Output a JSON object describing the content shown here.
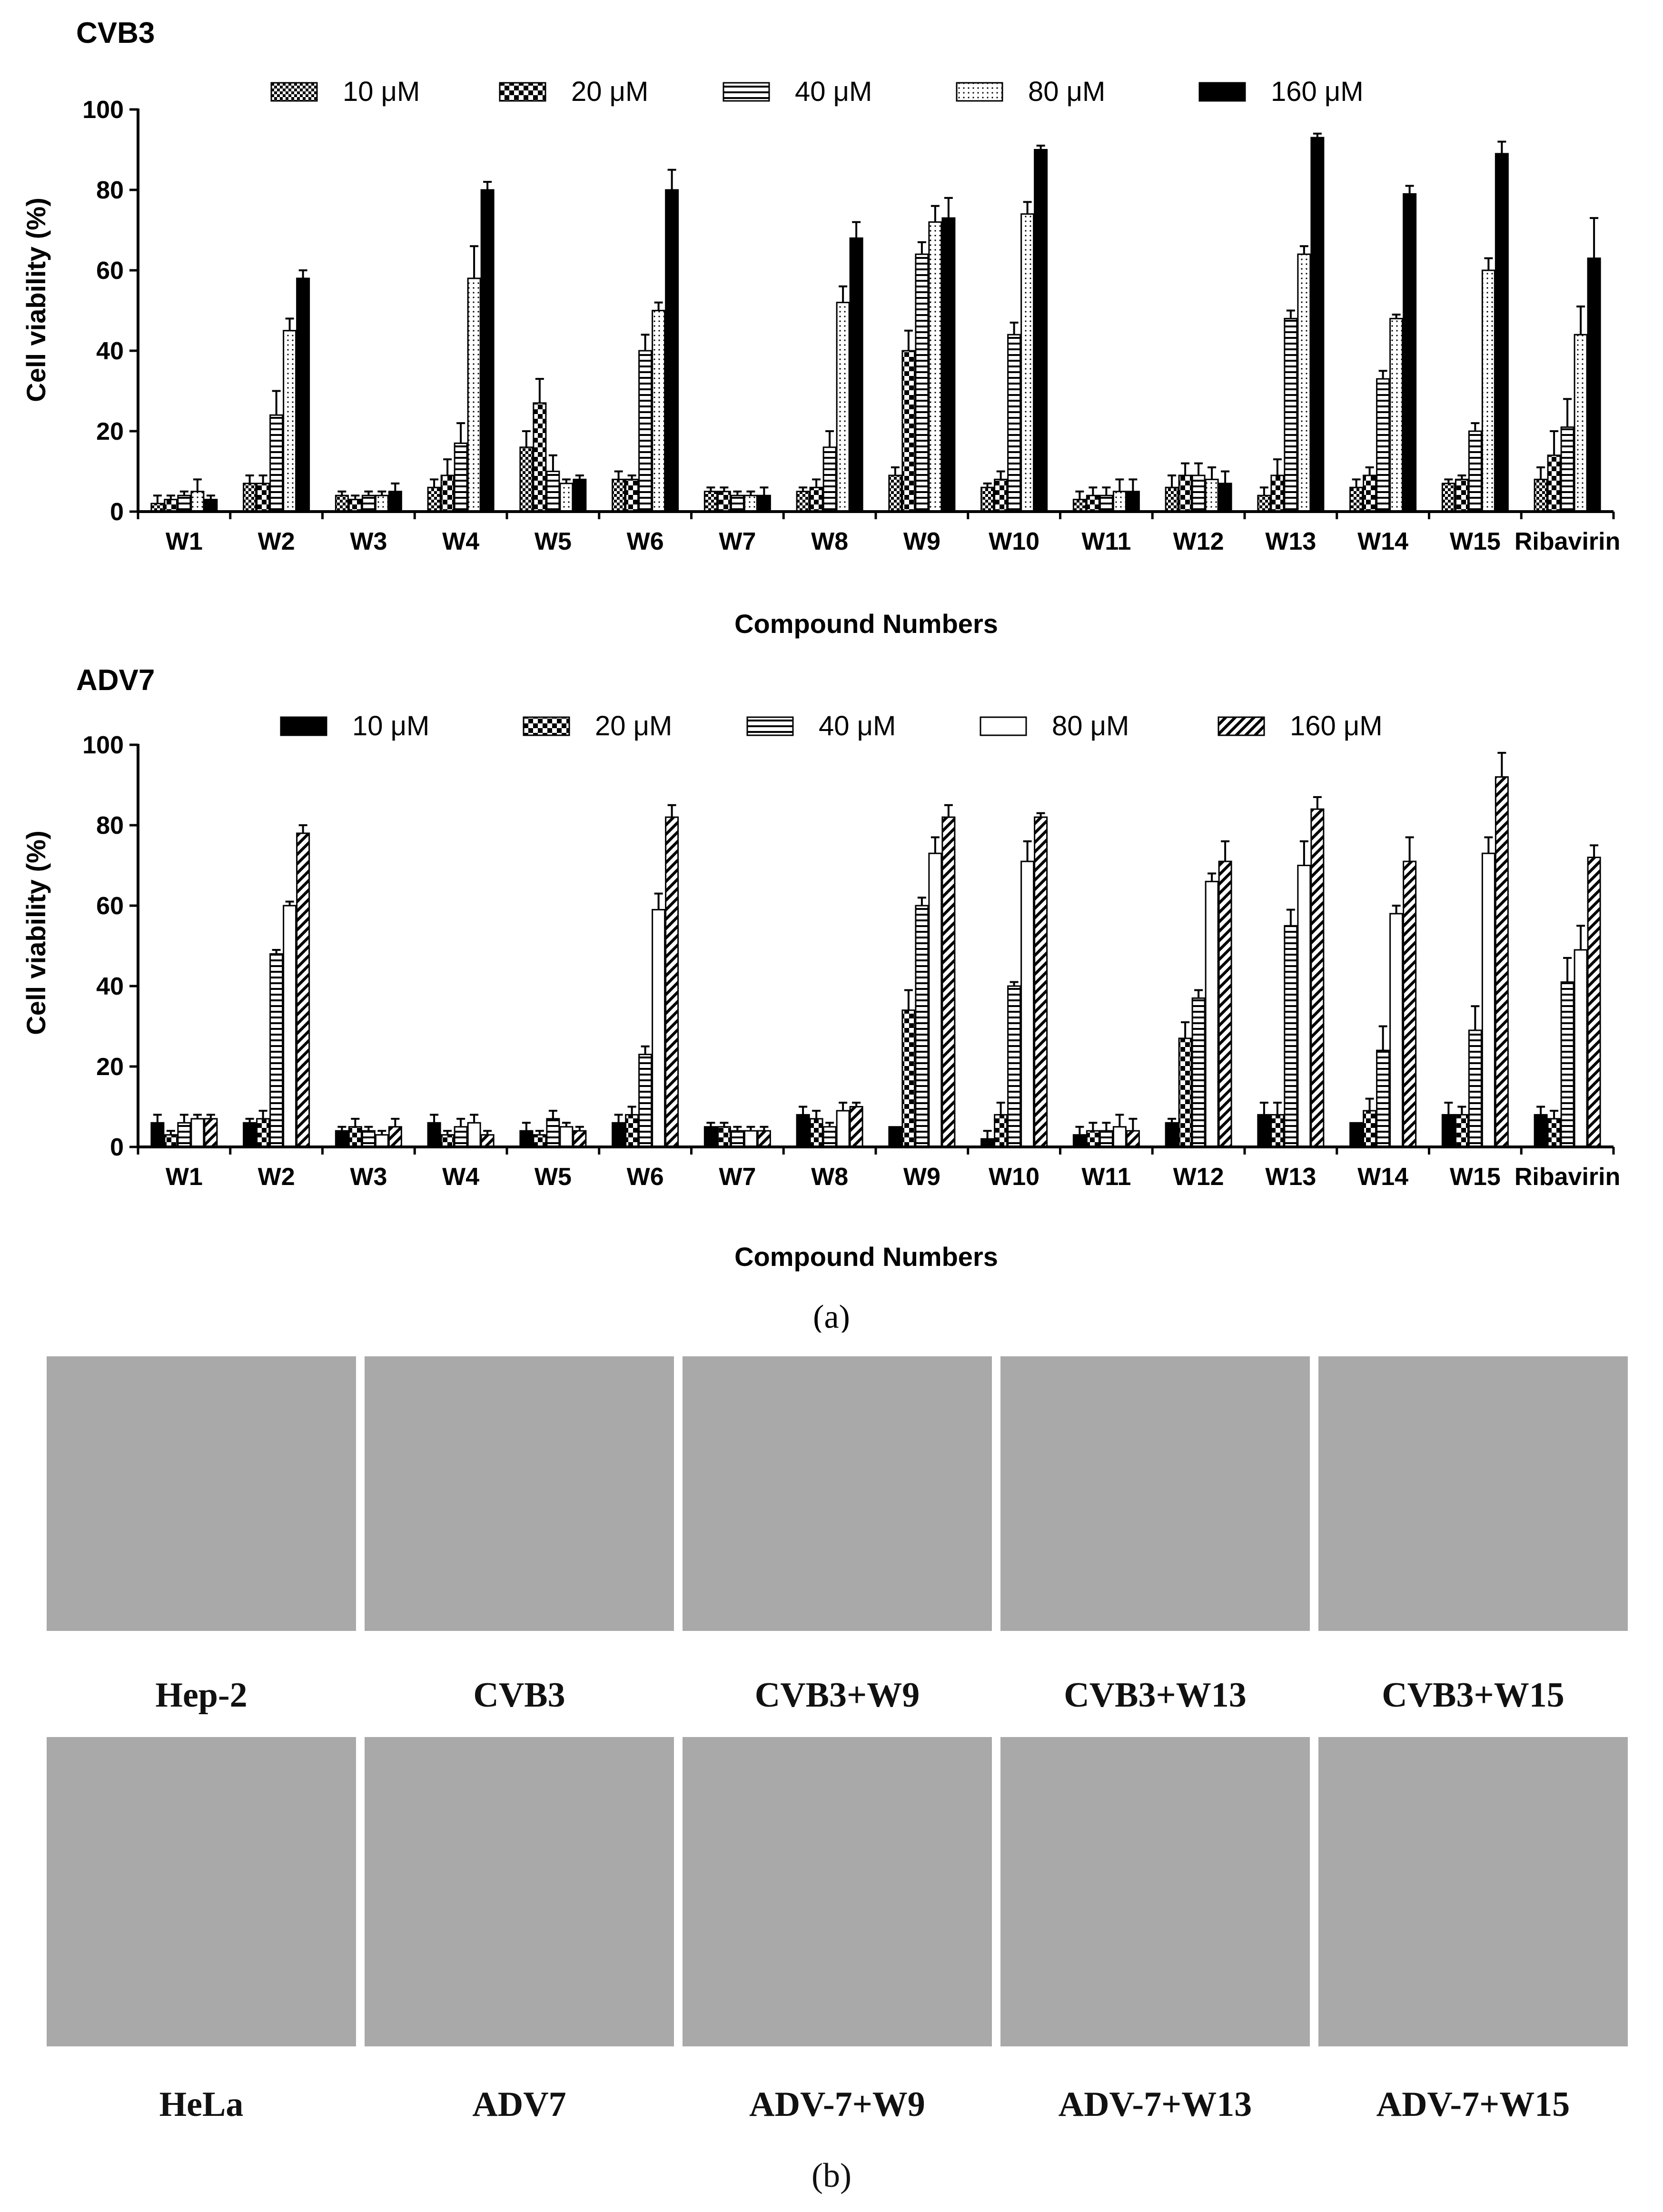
{
  "chart_data": [
    {
      "type": "bar",
      "title": "CVB3",
      "xlabel": "Compound Numbers",
      "ylabel": "Cell viability (%)",
      "ylim": [
        0,
        100
      ],
      "yticks": [
        0,
        20,
        40,
        60,
        80,
        100
      ],
      "grid": false,
      "legend_position": "top",
      "categories": [
        "W1",
        "W2",
        "W3",
        "W4",
        "W5",
        "W6",
        "W7",
        "W8",
        "W9",
        "W10",
        "W11",
        "W12",
        "W13",
        "W14",
        "W15",
        "Ribavirin"
      ],
      "series": [
        {
          "name": "10 μM",
          "pattern": "checker-fine",
          "values": [
            2,
            7,
            4,
            6,
            16,
            8,
            5,
            5,
            9,
            6,
            3,
            6,
            4,
            6,
            7,
            8
          ],
          "errors": [
            2,
            2,
            1,
            2,
            4,
            2,
            1,
            1,
            2,
            1,
            2,
            3,
            2,
            2,
            1,
            3
          ]
        },
        {
          "name": "20 μM",
          "pattern": "checker-coarse",
          "values": [
            3,
            7,
            3,
            9,
            27,
            8,
            5,
            6,
            40,
            8,
            4,
            9,
            9,
            9,
            8,
            14
          ],
          "errors": [
            1,
            2,
            1,
            4,
            6,
            1,
            1,
            2,
            5,
            2,
            2,
            3,
            4,
            2,
            1,
            6
          ]
        },
        {
          "name": "40 μM",
          "pattern": "horizontal-stripes",
          "values": [
            4,
            24,
            4,
            17,
            10,
            40,
            4,
            16,
            64,
            44,
            4,
            9,
            48,
            33,
            20,
            21
          ],
          "errors": [
            1,
            6,
            1,
            5,
            4,
            4,
            1,
            4,
            3,
            3,
            2,
            3,
            2,
            2,
            2,
            7
          ]
        },
        {
          "name": "80 μM",
          "pattern": "dotted",
          "values": [
            5,
            45,
            4,
            58,
            7,
            50,
            4,
            52,
            72,
            74,
            5,
            8,
            64,
            48,
            60,
            44
          ],
          "errors": [
            3,
            3,
            1,
            8,
            1,
            2,
            1,
            4,
            4,
            3,
            3,
            3,
            2,
            1,
            3,
            7
          ]
        },
        {
          "name": "160 μM",
          "pattern": "solid-black",
          "values": [
            3,
            58,
            5,
            80,
            8,
            80,
            4,
            68,
            73,
            90,
            5,
            7,
            93,
            79,
            89,
            63
          ],
          "errors": [
            1,
            2,
            2,
            2,
            1,
            5,
            2,
            4,
            5,
            1,
            3,
            3,
            1,
            2,
            3,
            10
          ]
        }
      ]
    },
    {
      "type": "bar",
      "title": "ADV7",
      "xlabel": "Compound Numbers",
      "ylabel": "Cell viability (%)",
      "ylim": [
        0,
        100
      ],
      "yticks": [
        0,
        20,
        40,
        60,
        80,
        100
      ],
      "grid": false,
      "legend_position": "top",
      "categories": [
        "W1",
        "W2",
        "W3",
        "W4",
        "W5",
        "W6",
        "W7",
        "W8",
        "W9",
        "W10",
        "W11",
        "W12",
        "W13",
        "W14",
        "W15",
        "Ribavirin"
      ],
      "series": [
        {
          "name": "10 μM",
          "pattern": "solid-black",
          "values": [
            6,
            6,
            4,
            6,
            4,
            6,
            5,
            8,
            5,
            2,
            3,
            6,
            8,
            6,
            8,
            8
          ],
          "errors": [
            2,
            1,
            1,
            2,
            2,
            2,
            1,
            2,
            0,
            2,
            2,
            1,
            3,
            0,
            3,
            2
          ]
        },
        {
          "name": "20 μM",
          "pattern": "checker-coarse",
          "values": [
            3,
            7,
            5,
            3,
            3,
            8,
            5,
            7,
            34,
            8,
            4,
            27,
            8,
            9,
            8,
            7
          ],
          "errors": [
            1,
            2,
            2,
            1,
            1,
            2,
            1,
            2,
            5,
            3,
            2,
            4,
            3,
            3,
            2,
            2
          ]
        },
        {
          "name": "40 μM",
          "pattern": "horizontal-stripes",
          "values": [
            6,
            48,
            4,
            5,
            7,
            23,
            4,
            5,
            60,
            40,
            4,
            37,
            55,
            24,
            29,
            41
          ],
          "errors": [
            2,
            1,
            1,
            2,
            2,
            2,
            1,
            1,
            2,
            1,
            2,
            2,
            4,
            6,
            6,
            6
          ]
        },
        {
          "name": "80 μM",
          "pattern": "open-white",
          "values": [
            7,
            60,
            3,
            6,
            5,
            59,
            4,
            9,
            73,
            71,
            5,
            66,
            70,
            58,
            73,
            49
          ],
          "errors": [
            1,
            1,
            1,
            2,
            1,
            4,
            1,
            2,
            4,
            5,
            3,
            2,
            6,
            2,
            4,
            6
          ]
        },
        {
          "name": "160 μM",
          "pattern": "diagonal-hatch",
          "values": [
            7,
            78,
            5,
            3,
            4,
            82,
            4,
            10,
            82,
            82,
            4,
            71,
            84,
            71,
            92,
            72
          ],
          "errors": [
            1,
            2,
            2,
            1,
            1,
            3,
            1,
            1,
            3,
            1,
            3,
            5,
            3,
            6,
            6,
            3
          ]
        }
      ]
    }
  ],
  "panel_a_label": "(a)",
  "panel_b_label": "(b)",
  "micrographs": {
    "row1": [
      "Hep-2",
      "CVB3",
      "CVB3+W9",
      "CVB3+W13",
      "CVB3+W15"
    ],
    "row2": [
      "HeLa",
      "ADV7",
      "ADV-7+W9",
      "ADV-7+W13",
      "ADV-7+W15"
    ]
  }
}
